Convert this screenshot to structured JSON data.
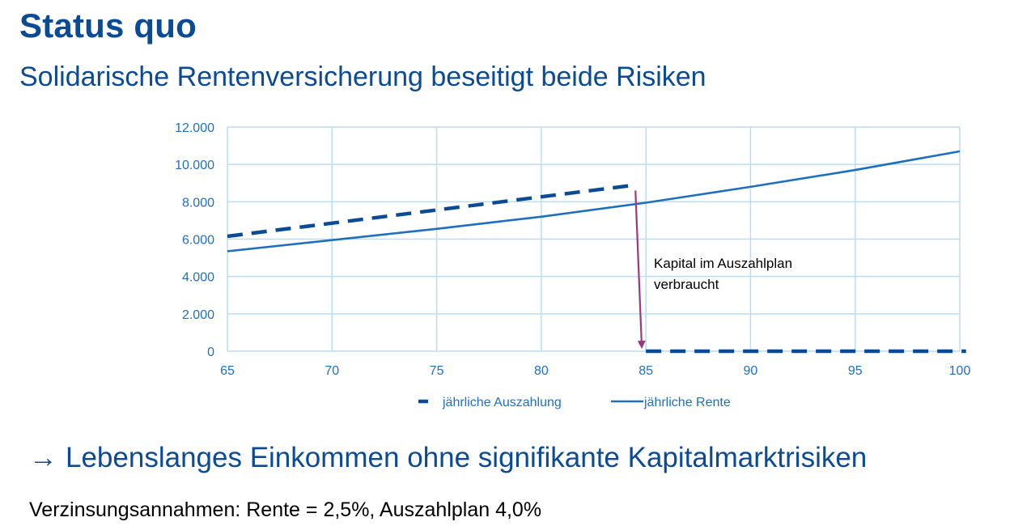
{
  "header": {
    "title": "Status quo",
    "subtitle": "Solidarische Rentenversicherung beseitigt beide Risiken"
  },
  "conclusion": {
    "arrow": "→",
    "text": "Lebenslanges Einkommen ohne signifikante Kapitalmarktrisiken"
  },
  "footnote": "Verzinsungsannahmen: Rente = 2,5%, Auszahlplan 4,0%",
  "colors": {
    "title": "#0b4a95",
    "axis_text": "#1f6fc1",
    "grid": "#bcdcf3",
    "series_auszahlung": "#0b4a95",
    "series_rente": "#1f6fc1",
    "annotation_arrow": "#9b3a7a"
  },
  "chart_data": {
    "type": "line",
    "xlim": [
      65,
      100
    ],
    "ylim": [
      0,
      12000
    ],
    "x_ticks": [
      65,
      70,
      75,
      80,
      85,
      90,
      95,
      100
    ],
    "y_ticks": [
      0,
      2000,
      4000,
      6000,
      8000,
      10000,
      12000
    ],
    "x_tick_labels": [
      "65",
      "70",
      "75",
      "80",
      "85",
      "90",
      "95",
      "100"
    ],
    "y_tick_labels": [
      "0",
      "2.000",
      "4.000",
      "6.000",
      "8.000",
      "10.000",
      "12.000"
    ],
    "grid": true,
    "legend_position": "bottom",
    "series": [
      {
        "name": "jährliche Auszahlung",
        "style": "dashed",
        "segments": [
          {
            "x": [
              65,
              84.5
            ],
            "y": [
              6150,
              8900
            ]
          },
          {
            "x": [
              85,
              100.3
            ],
            "y": [
              0,
              0
            ]
          }
        ]
      },
      {
        "name": "jährliche Rente",
        "style": "solid",
        "segments": [
          {
            "x": [
              65,
              70,
              75,
              80,
              85,
              90,
              95,
              100
            ],
            "y": [
              5350,
              5950,
              6550,
              7200,
              7950,
              8800,
              9700,
              10700
            ]
          }
        ]
      }
    ],
    "annotation": {
      "text_lines": [
        "Kapital im Auszahlplan",
        "verbraucht"
      ],
      "arrow_from": {
        "x": 84.5,
        "y": 8600
      },
      "arrow_to": {
        "x": 84.8,
        "y": 300
      }
    }
  }
}
